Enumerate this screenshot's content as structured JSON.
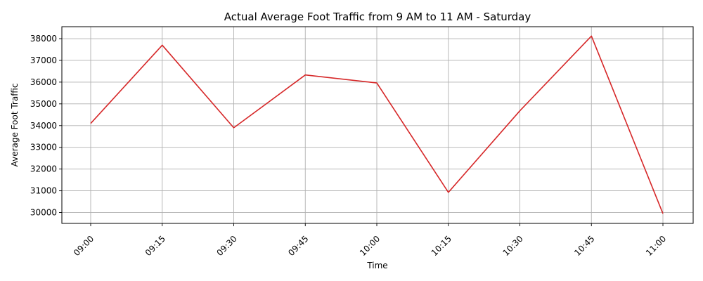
{
  "chart_data": {
    "type": "line",
    "title": "Actual Average Foot Traffic from 9 AM to 11 AM - Saturday",
    "xlabel": "Time",
    "ylabel": "Average Foot Traffic",
    "categories": [
      "09:00",
      "09:15",
      "09:30",
      "09:45",
      "10:00",
      "10:15",
      "10:30",
      "10:45",
      "11:00"
    ],
    "series": [
      {
        "values": [
          34100,
          37700,
          33900,
          36330,
          35960,
          30930,
          34680,
          38120,
          29950
        ],
        "color": "#d62728"
      }
    ],
    "yticks": [
      30000,
      31000,
      32000,
      33000,
      34000,
      35000,
      36000,
      37000,
      38000
    ],
    "ylim": [
      29500,
      38550
    ],
    "grid": true,
    "x_tick_rotation": 45
  }
}
